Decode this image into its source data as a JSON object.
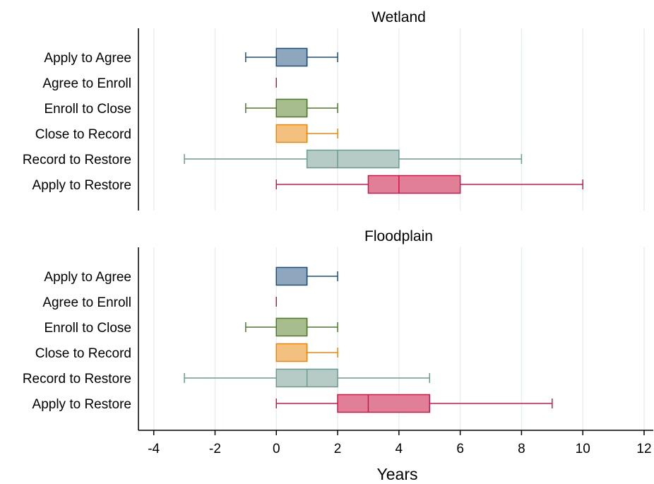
{
  "chart_data": {
    "type": "boxplot",
    "xlabel": "Years",
    "xlim": [
      -4.5,
      12.3
    ],
    "xticks": [
      -4,
      -2,
      0,
      2,
      4,
      6,
      8,
      10,
      12
    ],
    "grid": true,
    "categories": [
      "Apply to Agree",
      "Agree to Enroll",
      "Enroll to Close",
      "Close to Record",
      "Record to Restore",
      "Apply to Restore"
    ],
    "colors": [
      "#1f4e79",
      "#b22234",
      "#4e7a2c",
      "#e8890c",
      "#6d9a91",
      "#c8194a"
    ],
    "fills": [
      "#8fa6bf",
      "#b22234",
      "#a8bd8e",
      "#f3c07f",
      "#b6cbc5",
      "#e17f97"
    ],
    "panels": [
      {
        "title": "Wetland",
        "boxes": [
          {
            "whisker_low": -1,
            "q1": 0,
            "median": 1,
            "q3": 1,
            "whisker_high": 2
          },
          {
            "whisker_low": 0,
            "q1": 0,
            "median": 0,
            "q3": 0,
            "whisker_high": 0
          },
          {
            "whisker_low": -1,
            "q1": 0,
            "median": 1,
            "q3": 1,
            "whisker_high": 2
          },
          {
            "whisker_low": 0,
            "q1": 0,
            "median": 1,
            "q3": 1,
            "whisker_high": 2
          },
          {
            "whisker_low": -3,
            "q1": 1,
            "median": 2,
            "q3": 4,
            "whisker_high": 8
          },
          {
            "whisker_low": 0,
            "q1": 3,
            "median": 4,
            "q3": 6,
            "whisker_high": 10
          }
        ]
      },
      {
        "title": "Floodplain",
        "boxes": [
          {
            "whisker_low": 0,
            "q1": 0,
            "median": 1,
            "q3": 1,
            "whisker_high": 2
          },
          {
            "whisker_low": 0,
            "q1": 0,
            "median": 0,
            "q3": 0,
            "whisker_high": 0
          },
          {
            "whisker_low": -1,
            "q1": 0,
            "median": 1,
            "q3": 1,
            "whisker_high": 2
          },
          {
            "whisker_low": 0,
            "q1": 0,
            "median": 1,
            "q3": 1,
            "whisker_high": 2
          },
          {
            "whisker_low": -3,
            "q1": 0,
            "median": 1,
            "q3": 2,
            "whisker_high": 5
          },
          {
            "whisker_low": 0,
            "q1": 2,
            "median": 3,
            "q3": 5,
            "whisker_high": 9
          }
        ]
      }
    ]
  }
}
